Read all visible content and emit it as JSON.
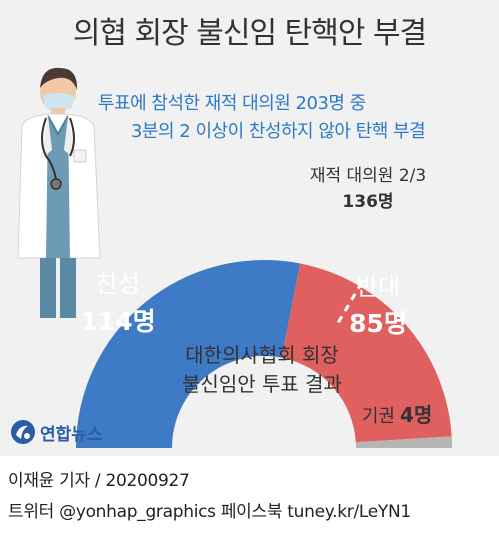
{
  "title": "의협 회장 불신임 탄핵안 부결",
  "subtitle_lines": [
    "투표에 참석한 재적 대의원 203명 중",
    "3분의 2 이상이 찬성하지 않아 탄핵 부결"
  ],
  "chart_data": {
    "type": "pie",
    "style": "half-donut",
    "categories": [
      "찬성",
      "반대",
      "기권"
    ],
    "values": [
      114,
      85,
      4
    ],
    "value_labels": [
      "114명",
      "85명",
      "4명"
    ],
    "total": 203,
    "threshold": {
      "label": "재적 대의원 2/3",
      "value": 136,
      "value_label": "136명"
    },
    "center_label_lines": [
      "대한의사협회 회장",
      "불신임안 투표 결과"
    ],
    "colors": [
      "#3f7ac6",
      "#e06060",
      "#b5b5b5"
    ]
  },
  "logo": {
    "text": "연합뉴스",
    "icon": "yonhap-swirl-icon"
  },
  "footer": {
    "line1": "이재윤 기자 / 20200927",
    "line2": "트위터 @yonhap_graphics  페이스북 tuney.kr/LeYN1"
  }
}
